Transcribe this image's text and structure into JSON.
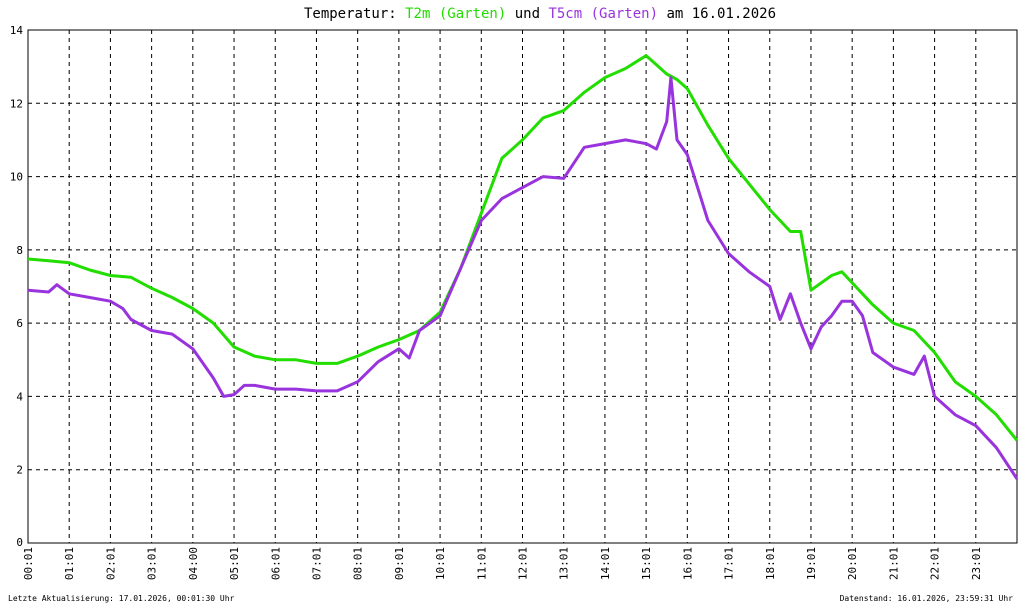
{
  "title": {
    "prefix": "Temperatur: ",
    "series1_label": "T2m (Garten)",
    "connector": " und ",
    "series2_label": "T5cm (Garten)",
    "suffix": " am 16.01.2026"
  },
  "footer": {
    "left": "Letzte Aktualisierung: 17.01.2026, 00:01:30 Uhr",
    "right": "Datenstand: 16.01.2026, 23:59:31 Uhr"
  },
  "colors": {
    "series1": "#22dd00",
    "series2": "#9933dd",
    "grid": "#000000"
  },
  "chart_data": {
    "type": "line",
    "xlim": [
      0,
      24
    ],
    "ylim": [
      0,
      14
    ],
    "y_ticks": [
      "0",
      "2",
      "4",
      "6",
      "8",
      "10",
      "12",
      "14"
    ],
    "x_ticks": [
      "00:01",
      "01:01",
      "02:01",
      "03:01",
      "04:00",
      "05:01",
      "06:01",
      "07:01",
      "08:01",
      "09:01",
      "10:01",
      "11:01",
      "12:01",
      "13:01",
      "14:01",
      "15:01",
      "16:01",
      "17:01",
      "18:01",
      "19:01",
      "20:01",
      "21:01",
      "22:01",
      "23:01"
    ],
    "grid": true,
    "series": [
      {
        "name": "T2m (Garten)",
        "color": "#22dd00",
        "x": [
          0,
          0.5,
          1,
          1.5,
          2,
          2.5,
          3,
          3.5,
          4,
          4.5,
          5,
          5.5,
          6,
          6.5,
          7,
          7.5,
          8,
          8.5,
          9,
          9.5,
          10,
          10.5,
          11,
          11.5,
          12,
          12.5,
          13,
          13.5,
          14,
          14.5,
          15,
          15.25,
          15.5,
          15.75,
          16,
          16.5,
          17,
          17.5,
          18,
          18.5,
          18.75,
          19,
          19.25,
          19.5,
          19.75,
          20,
          20.5,
          21,
          21.5,
          22,
          22.5,
          23,
          23.5,
          24
        ],
        "y": [
          7.75,
          7.7,
          7.65,
          7.45,
          7.3,
          7.25,
          6.95,
          6.7,
          6.4,
          6.0,
          5.35,
          5.1,
          5.0,
          5.0,
          4.9,
          4.9,
          5.1,
          5.35,
          5.55,
          5.8,
          6.3,
          7.5,
          9.0,
          10.5,
          11.0,
          11.6,
          11.8,
          12.3,
          12.7,
          12.95,
          13.3,
          13.05,
          12.8,
          12.65,
          12.4,
          11.4,
          10.5,
          9.8,
          9.1,
          8.5,
          8.5,
          6.9,
          7.1,
          7.3,
          7.4,
          7.1,
          6.5,
          6.0,
          5.8,
          5.2,
          4.4,
          4.0,
          3.5,
          2.8
        ]
      },
      {
        "name": "T5cm (Garten)",
        "color": "#9933dd",
        "x": [
          0,
          0.5,
          0.7,
          1,
          1.5,
          2,
          2.3,
          2.5,
          3,
          3.5,
          4,
          4.5,
          4.75,
          5,
          5.25,
          5.5,
          6,
          6.5,
          7,
          7.5,
          8,
          8.5,
          9,
          9.25,
          9.5,
          10,
          10.5,
          11,
          11.5,
          12,
          12.5,
          13,
          13.5,
          14,
          14.5,
          15,
          15.25,
          15.5,
          15.6,
          15.75,
          16,
          16.5,
          17,
          17.5,
          18,
          18.25,
          18.5,
          18.75,
          19,
          19.25,
          19.5,
          19.75,
          20,
          20.25,
          20.5,
          21,
          21.5,
          21.75,
          22,
          22.5,
          23,
          23.5,
          24
        ],
        "y": [
          6.9,
          6.85,
          7.05,
          6.8,
          6.7,
          6.6,
          6.4,
          6.1,
          5.8,
          5.7,
          5.3,
          4.5,
          4.0,
          4.05,
          4.3,
          4.3,
          4.2,
          4.2,
          4.15,
          4.15,
          4.4,
          4.95,
          5.3,
          5.05,
          5.8,
          6.2,
          7.5,
          8.8,
          9.4,
          9.7,
          10.0,
          9.95,
          10.8,
          10.9,
          11.0,
          10.9,
          10.75,
          11.5,
          12.7,
          11.0,
          10.6,
          8.8,
          7.9,
          7.4,
          7.0,
          6.1,
          6.8,
          6.0,
          5.3,
          5.9,
          6.2,
          6.6,
          6.6,
          6.2,
          5.2,
          4.8,
          4.6,
          5.1,
          4.0,
          3.5,
          3.2,
          2.6,
          1.75
        ]
      }
    ]
  }
}
